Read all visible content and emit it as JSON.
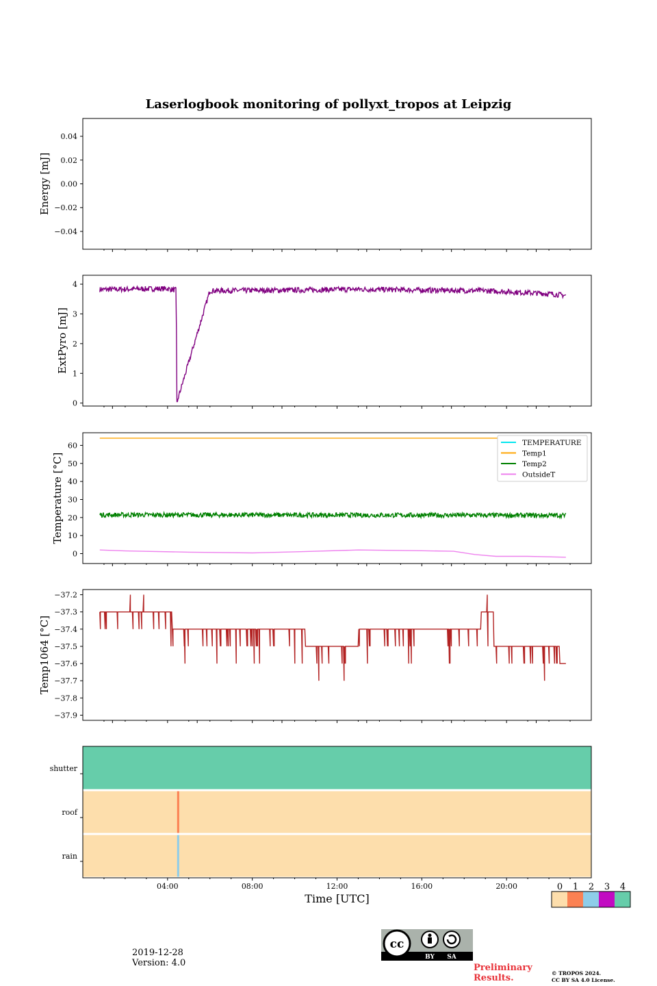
{
  "title": "Laserlogbook monitoring of pollyxt_tropos at Leipzig",
  "footer": {
    "date": "2019-12-28",
    "version": "Version: 4.0",
    "preliminary": [
      "Preliminary",
      "Results."
    ],
    "copyright": [
      "© TROPOS 2024.",
      "CC BY SA 4.0 License."
    ],
    "license_badge": {
      "by": "BY",
      "sa": "SA"
    }
  },
  "colorbar": {
    "ticks": [
      "0",
      "1",
      "2",
      "3",
      "4"
    ],
    "colors": [
      "#fddeac",
      "#fb8153",
      "#8ecde9",
      "#c20cc2",
      "#66cdaa"
    ]
  },
  "chart_data": [
    {
      "type": "line",
      "panel": "energy",
      "ylabel": "Energy [mJ]",
      "ylim": [
        -0.055,
        0.055
      ],
      "yticks": [
        0.04,
        0.02,
        0.0,
        -0.02,
        -0.04
      ],
      "ytick_labels": [
        "0.04",
        "0.02",
        "0.00",
        "−0.02",
        "−0.04"
      ],
      "series": []
    },
    {
      "type": "line",
      "panel": "extpyro",
      "ylabel": "ExtPyro [mJ]",
      "ylim": [
        -0.1,
        4.3
      ],
      "yticks": [
        0,
        1,
        2,
        3,
        4
      ],
      "ytick_labels": [
        "0",
        "1",
        "2",
        "3",
        "4"
      ],
      "series": [
        {
          "name": "ExtPyro",
          "color": "#800080",
          "x": [
            0.8,
            4.0,
            4.2,
            4.4,
            4.45,
            6.0,
            10.0,
            13.0,
            16.0,
            19.0,
            22.0,
            22.8
          ],
          "y": [
            3.82,
            3.85,
            3.82,
            3.8,
            0.05,
            3.78,
            3.8,
            3.83,
            3.8,
            3.78,
            3.68,
            3.62
          ],
          "noise": 0.09,
          "spike_x": 4.45,
          "spike_y": 0.05
        }
      ]
    },
    {
      "type": "line",
      "panel": "temperature",
      "ylabel": "Temperature [°C]",
      "ylim": [
        -5.5,
        67
      ],
      "yticks": [
        0,
        10,
        20,
        30,
        40,
        50,
        60
      ],
      "ytick_labels": [
        "0",
        "10",
        "20",
        "30",
        "40",
        "50",
        "60"
      ],
      "legend": [
        "TEMPERATURE",
        "Temp1",
        "Temp2",
        "OutsideT"
      ],
      "series": [
        {
          "name": "TEMPERATURE",
          "color": "#00e5ee",
          "x": [],
          "y": []
        },
        {
          "name": "Temp1",
          "color": "#ffa500",
          "x": [
            0.8,
            22.8
          ],
          "y": [
            64,
            64
          ]
        },
        {
          "name": "Temp2",
          "color": "#008000",
          "x": [
            0.8,
            22.8
          ],
          "y": [
            21.5,
            21.2
          ],
          "noise": 1.3
        },
        {
          "name": "OutsideT",
          "color": "#ee82ee",
          "x": [
            0.8,
            2.0,
            5.0,
            8.0,
            10.0,
            13.0,
            16.0,
            17.5,
            18.5,
            19.5,
            21.0,
            22.8
          ],
          "y": [
            2.0,
            1.5,
            0.8,
            0.4,
            1.0,
            2.0,
            1.6,
            1.3,
            -0.5,
            -1.5,
            -1.5,
            -2.0
          ]
        }
      ]
    },
    {
      "type": "line",
      "panel": "temp1064",
      "ylabel": "Temp1064 [°C]",
      "ylim": [
        -37.93,
        -37.17
      ],
      "yticks": [
        -37.2,
        -37.3,
        -37.4,
        -37.5,
        -37.6,
        -37.7,
        -37.8,
        -37.9
      ],
      "ytick_labels": [
        "−37.2",
        "−37.3",
        "−37.4",
        "−37.5",
        "−37.6",
        "−37.7",
        "−37.8",
        "−37.9"
      ],
      "series": [
        {
          "name": "Temp1064",
          "color": "#b22222",
          "x": [
            0.8,
            4.2,
            4.2,
            10.5,
            10.5,
            13.0,
            13.0,
            18.8,
            18.8,
            19.4,
            19.4,
            22.5,
            22.5,
            22.8
          ],
          "y": [
            -37.3,
            -37.3,
            -37.4,
            -37.4,
            -37.5,
            -37.5,
            -37.4,
            -37.4,
            -37.3,
            -37.3,
            -37.5,
            -37.5,
            -37.6,
            -37.6
          ]
        }
      ]
    },
    {
      "type": "heatmap",
      "panel": "status",
      "rows": [
        "shutter",
        "roof",
        "rain"
      ],
      "row_values": [
        4,
        0,
        0
      ],
      "markers": [
        {
          "row": "roof",
          "x": 4.5,
          "value": 1
        },
        {
          "row": "rain",
          "x": 4.5,
          "value": 2
        }
      ],
      "xlabel": "Time [UTC]",
      "xlim": [
        0,
        24
      ],
      "xticks": [
        4,
        8,
        12,
        16,
        20
      ],
      "xtick_labels": [
        "04:00",
        "08:00",
        "12:00",
        "16:00",
        "20:00"
      ]
    }
  ]
}
